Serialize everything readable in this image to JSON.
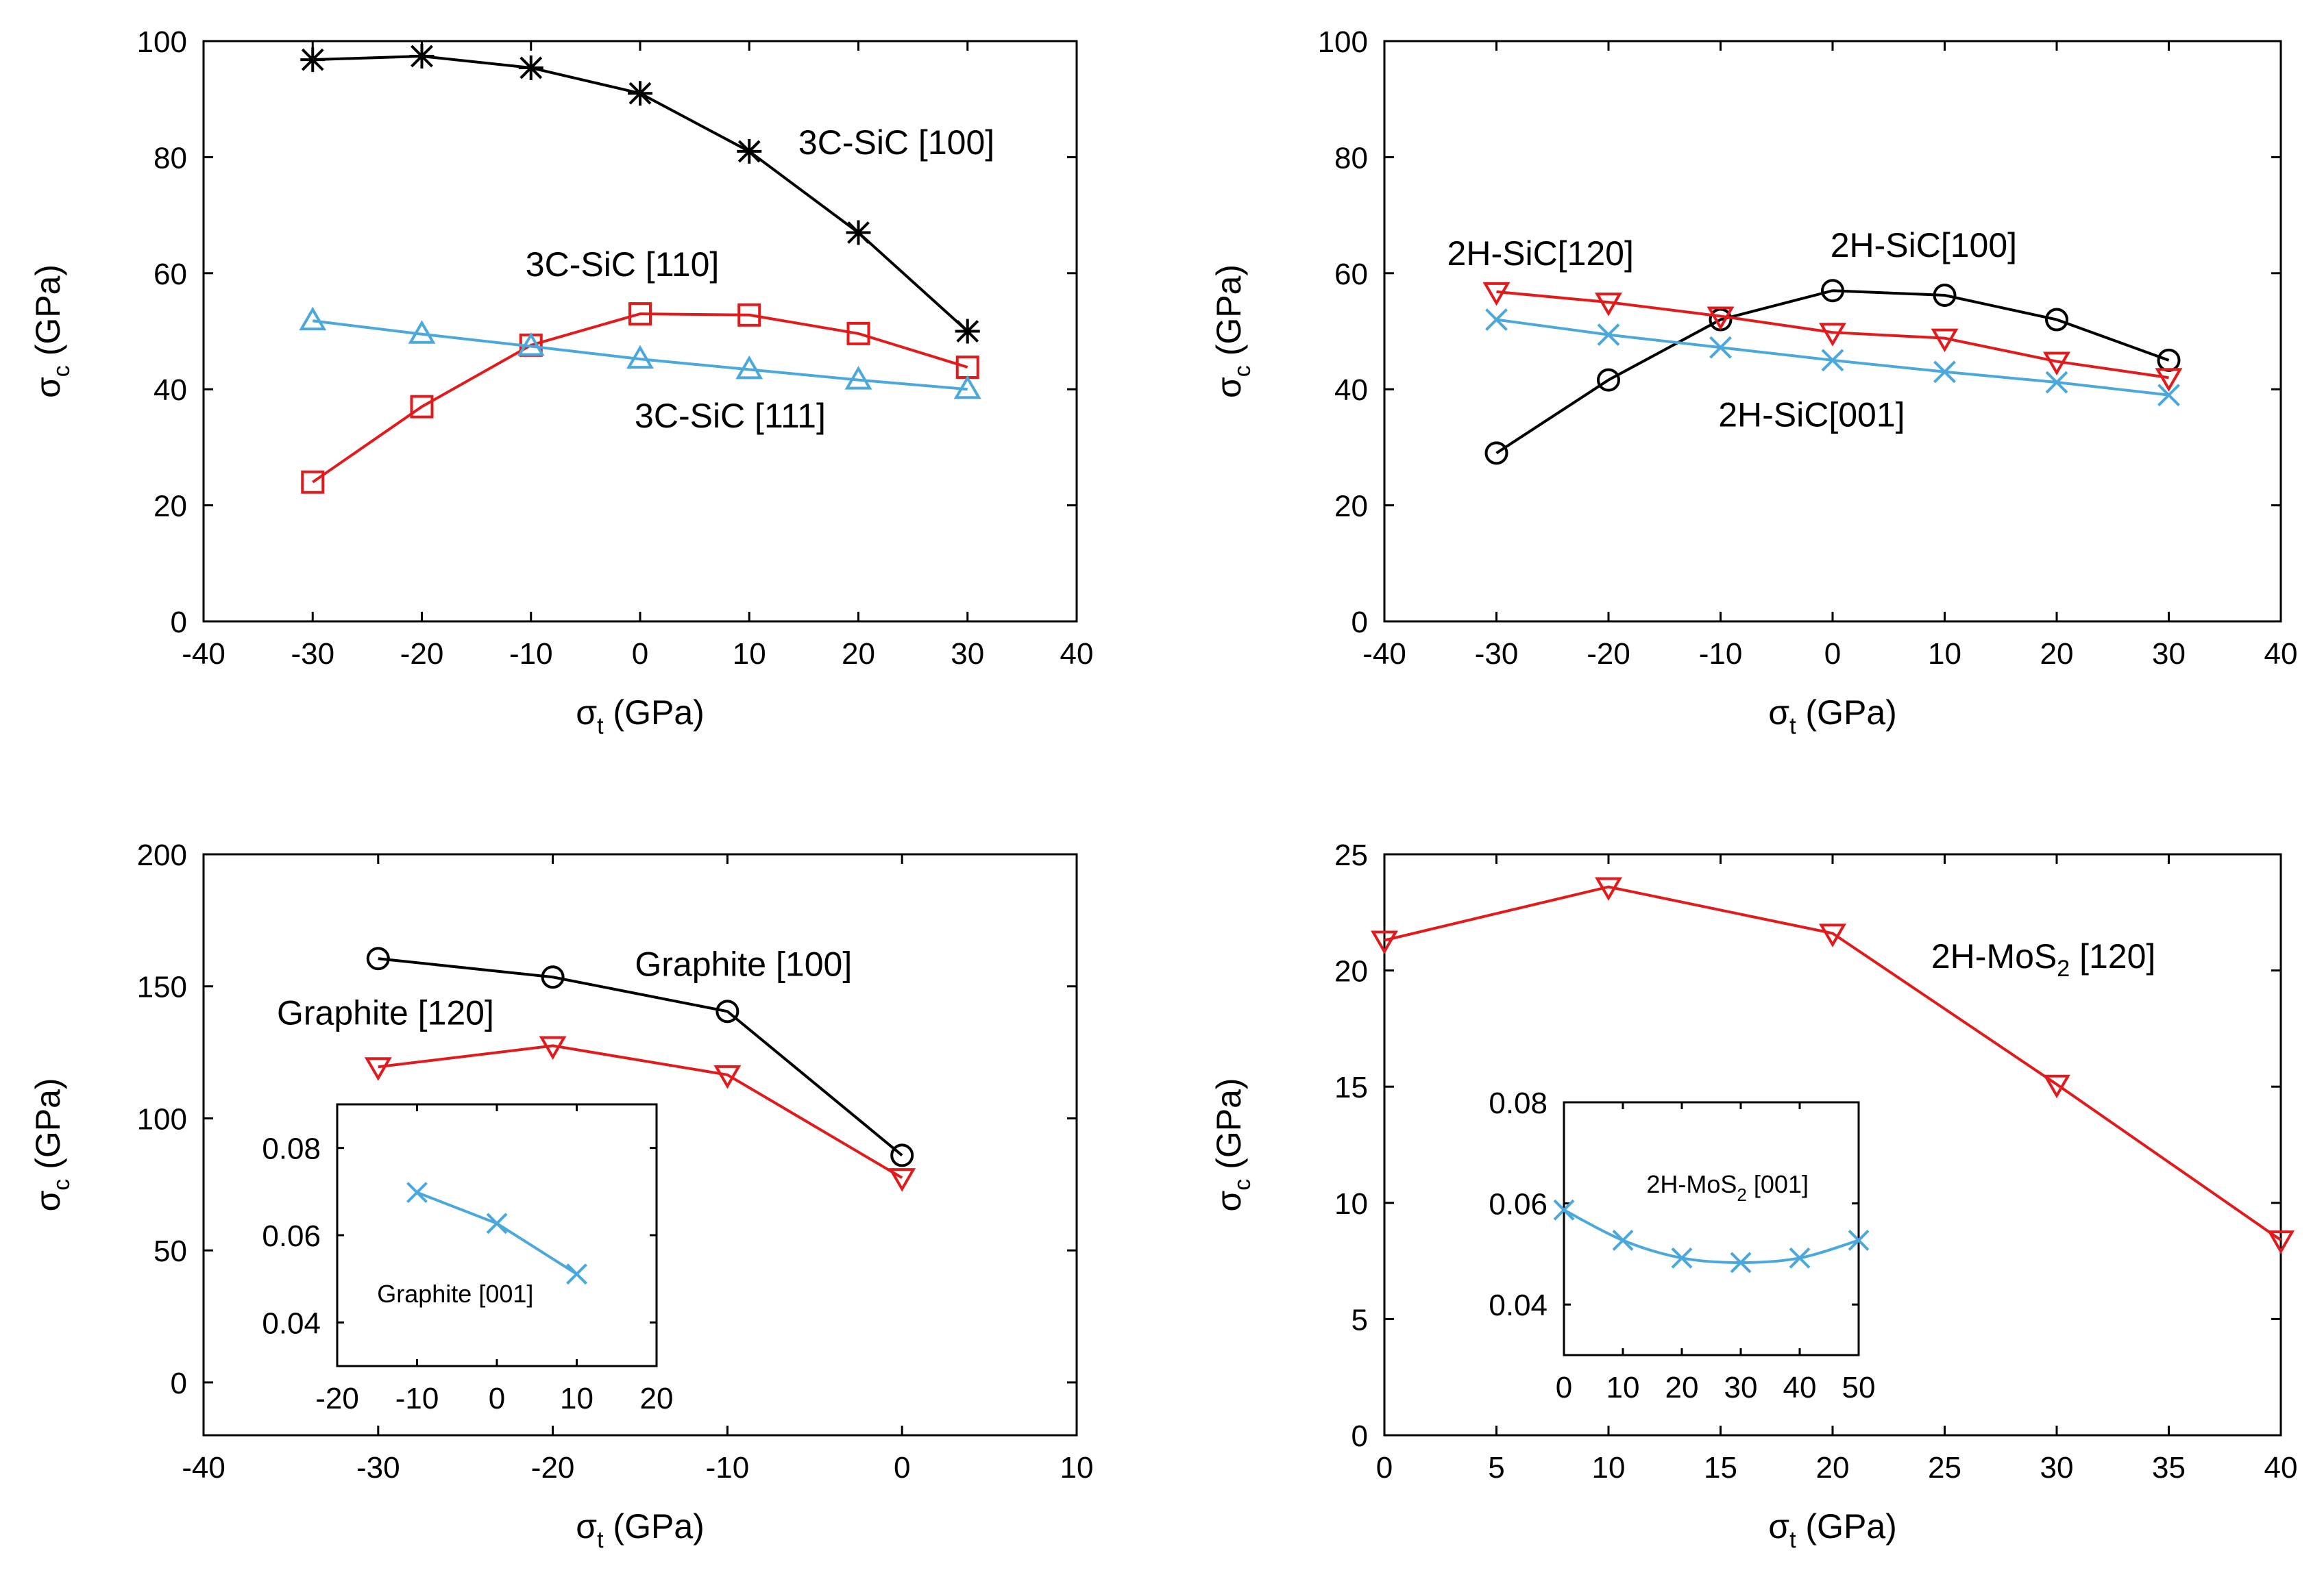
{
  "colors": {
    "black": "#000000",
    "red": "#e31a1c",
    "blue": "#4aa8dc"
  },
  "chart_data": [
    {
      "id": "a",
      "type": "line",
      "xlabel": "σ",
      "xlabel_sub": "t",
      "xlabel_unit": " (GPa)",
      "ylabel": "σ",
      "ylabel_sub": "c",
      "ylabel_unit": " (GPa)",
      "xlim": [
        -40,
        40
      ],
      "ylim": [
        0,
        100
      ],
      "xticks": [
        -40,
        -30,
        -20,
        -10,
        0,
        10,
        20,
        30,
        40
      ],
      "yticks": [
        0,
        20,
        40,
        60,
        80,
        100
      ],
      "series": [
        {
          "name": "3C-SiC [100]",
          "color": "#000000",
          "marker": "star",
          "x": [
            -30,
            -20,
            -10,
            0,
            10,
            20,
            30
          ],
          "y": [
            96.8,
            97.4,
            95.4,
            91.0,
            81.0,
            67.0,
            50.0
          ]
        },
        {
          "name": "3C-SiC [110]",
          "color": "#e31a1c",
          "marker": "square",
          "x": [
            -30,
            -20,
            -10,
            0,
            10,
            20,
            30
          ],
          "y": [
            24.0,
            37.0,
            47.6,
            53.0,
            52.8,
            49.6,
            43.8
          ]
        },
        {
          "name": "3C-SiC [111]",
          "color": "#4aa8dc",
          "marker": "triangle-up",
          "x": [
            -30,
            -20,
            -10,
            0,
            10,
            20,
            30
          ],
          "y": [
            51.8,
            49.5,
            47.4,
            45.2,
            43.4,
            41.6,
            40.0
          ]
        }
      ],
      "annotations": [
        {
          "text": "3C-SiC [100]",
          "x": 14.5,
          "y": 80.5,
          "anchor": "start"
        },
        {
          "text": "3C-SiC [110]",
          "x": -10.5,
          "y": 59.5,
          "anchor": "start"
        },
        {
          "text": "3C-SiC [111]",
          "x": -0.5,
          "y": 33.4,
          "anchor": "start"
        }
      ]
    },
    {
      "id": "b",
      "type": "line",
      "xlabel": "σ",
      "xlabel_sub": "t",
      "xlabel_unit": " (GPa)",
      "ylabel": "σ",
      "ylabel_sub": "c",
      "ylabel_unit": " (GPa)",
      "xlim": [
        -40,
        40
      ],
      "ylim": [
        0,
        100
      ],
      "xticks": [
        -40,
        -30,
        -20,
        -10,
        0,
        10,
        20,
        30,
        40
      ],
      "yticks": [
        0,
        20,
        40,
        60,
        80,
        100
      ],
      "series": [
        {
          "name": "2H-SiC[100]",
          "color": "#000000",
          "marker": "circle",
          "x": [
            -30,
            -20,
            -10,
            0,
            10,
            20,
            30
          ],
          "y": [
            29.0,
            41.6,
            52.0,
            57.0,
            56.2,
            52.0,
            45.0
          ]
        },
        {
          "name": "2H-SiC[120]",
          "color": "#e31a1c",
          "marker": "triangle-down",
          "x": [
            -30,
            -20,
            -10,
            0,
            10,
            20,
            30
          ],
          "y": [
            56.8,
            55.0,
            52.6,
            49.8,
            48.8,
            44.8,
            42.0
          ]
        },
        {
          "name": "2H-SiC[001]",
          "color": "#4aa8dc",
          "marker": "x",
          "x": [
            -30,
            -20,
            -10,
            0,
            10,
            20,
            30
          ],
          "y": [
            52.0,
            49.4,
            47.2,
            45.0,
            43.0,
            41.2,
            39.0
          ]
        }
      ],
      "annotations": [
        {
          "text": "2H-SiC[120]",
          "x": -34.4,
          "y": 61.4,
          "anchor": "start"
        },
        {
          "text": "2H-SiC[100]",
          "x": -0.2,
          "y": 62.8,
          "anchor": "start"
        },
        {
          "text": "2H-SiC[001]",
          "x": -10.2,
          "y": 33.6,
          "anchor": "start"
        }
      ]
    },
    {
      "id": "c",
      "type": "line",
      "xlabel": "σ",
      "xlabel_sub": "t",
      "xlabel_unit": " (GPa)",
      "ylabel": "σ",
      "ylabel_sub": "c",
      "ylabel_unit": " (GPa)",
      "xlim": [
        -40,
        10
      ],
      "ylim": [
        -20,
        200
      ],
      "xticks": [
        -40,
        -30,
        -20,
        -10,
        0,
        10
      ],
      "yticks": [
        0,
        50,
        100,
        150,
        200
      ],
      "series": [
        {
          "name": "Graphite [100]",
          "color": "#000000",
          "marker": "circle",
          "x": [
            -30,
            -20,
            -10,
            0
          ],
          "y": [
            160.5,
            153.5,
            140.5,
            86.0
          ]
        },
        {
          "name": "Graphite [120]",
          "color": "#e31a1c",
          "marker": "triangle-down",
          "x": [
            -30,
            -20,
            -10,
            0
          ],
          "y": [
            119.5,
            127.5,
            116.5,
            77.5
          ]
        }
      ],
      "annotations": [
        {
          "text": "Graphite [100]",
          "x": -15.3,
          "y": 154.0,
          "anchor": "start"
        },
        {
          "text": "Graphite [120]",
          "x": -35.8,
          "y": 135.5,
          "anchor": "start"
        }
      ],
      "inset": {
        "type": "line",
        "xlim": [
          -20,
          20
        ],
        "ylim": [
          0.03,
          0.09
        ],
        "xticks": [
          -20,
          -10,
          0,
          10,
          20
        ],
        "yticks": [
          0.04,
          0.06,
          0.08
        ],
        "ytick_labels": [
          "0.04",
          "0.06",
          "0.08"
        ],
        "series": [
          {
            "name": "Graphite [001]",
            "color": "#4aa8dc",
            "marker": "x",
            "x": [
              -10,
              0,
              10
            ],
            "y": [
              0.0698,
              0.0627,
              0.0511
            ]
          }
        ],
        "annotations": [
          {
            "text": "Graphite [001]",
            "x": -15.0,
            "y": 0.0446,
            "anchor": "start"
          }
        ]
      }
    },
    {
      "id": "d",
      "type": "line",
      "xlabel": "σ",
      "xlabel_sub": "t",
      "xlabel_unit": " (GPa)",
      "ylabel": "σ",
      "ylabel_sub": "c",
      "ylabel_unit": " (GPa)",
      "xlim": [
        0,
        40
      ],
      "ylim": [
        0,
        25
      ],
      "xticks": [
        0,
        5,
        10,
        15,
        20,
        25,
        30,
        35,
        40
      ],
      "yticks": [
        0,
        5,
        10,
        15,
        20,
        25
      ],
      "series": [
        {
          "name": "2H-MoS2 [120]",
          "color": "#e31a1c",
          "marker": "triangle-down",
          "x": [
            0,
            10,
            20,
            30,
            40
          ],
          "y": [
            21.3,
            23.6,
            21.6,
            15.1,
            8.4
          ]
        }
      ],
      "annotations": [
        {
          "text": "2H-MoS",
          "sub": "2",
          "suffix": " [120]",
          "x": 24.4,
          "y": 20.1,
          "anchor": "start"
        }
      ],
      "inset": {
        "type": "line",
        "xlim": [
          0,
          50
        ],
        "ylim": [
          0.03,
          0.08
        ],
        "xticks": [
          0,
          10,
          20,
          30,
          40,
          50
        ],
        "yticks": [
          0.04,
          0.06,
          0.08
        ],
        "ytick_labels": [
          "0.04",
          "0.06",
          "0.08"
        ],
        "series": [
          {
            "name": "2H-MoS2 [001]",
            "color": "#4aa8dc",
            "marker": "x",
            "curve": true,
            "x": [
              0,
              10,
              20,
              30,
              40,
              50
            ],
            "y": [
              0.0587,
              0.0527,
              0.0492,
              0.0483,
              0.0492,
              0.0527
            ]
          }
        ],
        "annotations": [
          {
            "text": "2H-MoS",
            "sub": "2",
            "suffix": " [001]",
            "x": 14.0,
            "y": 0.0621,
            "anchor": "start"
          }
        ]
      }
    }
  ]
}
